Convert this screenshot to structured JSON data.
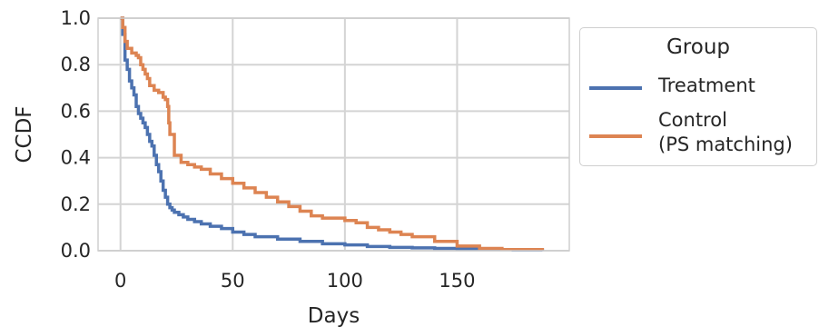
{
  "chart_data": {
    "type": "line",
    "step": true,
    "xlabel": "Days",
    "ylabel": "CCDF",
    "xlim": [
      -10,
      200
    ],
    "ylim": [
      0,
      1.0
    ],
    "xticks": [
      0,
      50,
      100,
      150
    ],
    "yticks": [
      0.0,
      0.2,
      0.4,
      0.6,
      0.8,
      1.0
    ],
    "xtick_labels": [
      "0",
      "50",
      "100",
      "150"
    ],
    "ytick_labels": [
      "0.0",
      "0.2",
      "0.4",
      "0.6",
      "0.8",
      "1.0"
    ],
    "grid": true,
    "legend": {
      "title": "Group",
      "position": "outside-right",
      "entries": [
        "Treatment",
        "Control\n(PS matching)"
      ]
    },
    "series": [
      {
        "name": "Treatment",
        "color": "#4c72b0",
        "x": [
          0,
          1,
          2,
          3,
          4,
          5,
          6,
          7,
          8,
          9,
          10,
          11,
          12,
          13,
          14,
          15,
          16,
          17,
          18,
          19,
          20,
          21,
          22,
          23,
          24,
          26,
          28,
          30,
          33,
          36,
          40,
          45,
          50,
          55,
          60,
          70,
          80,
          90,
          100,
          110,
          120,
          130,
          140,
          150,
          160,
          175,
          188
        ],
        "y": [
          1.0,
          0.93,
          0.82,
          0.78,
          0.73,
          0.7,
          0.67,
          0.62,
          0.59,
          0.57,
          0.55,
          0.53,
          0.5,
          0.47,
          0.45,
          0.41,
          0.37,
          0.34,
          0.3,
          0.26,
          0.23,
          0.2,
          0.185,
          0.175,
          0.165,
          0.155,
          0.145,
          0.135,
          0.125,
          0.115,
          0.105,
          0.095,
          0.08,
          0.07,
          0.06,
          0.05,
          0.04,
          0.03,
          0.025,
          0.018,
          0.014,
          0.012,
          0.01,
          0.008,
          0.005,
          0.003,
          0.002
        ]
      },
      {
        "name": "Control\n(PS matching)",
        "color": "#dd8452",
        "x": [
          0,
          1,
          2,
          3,
          5,
          7,
          8,
          9,
          10,
          11,
          12,
          13,
          15,
          17,
          19,
          20,
          21,
          21.5,
          22,
          24,
          27,
          30,
          33,
          36,
          40,
          45,
          50,
          55,
          60,
          65,
          70,
          75,
          80,
          85,
          90,
          100,
          105,
          110,
          115,
          120,
          125,
          130,
          140,
          150,
          160,
          170,
          188
        ],
        "y": [
          1.0,
          0.96,
          0.9,
          0.87,
          0.85,
          0.84,
          0.83,
          0.8,
          0.78,
          0.76,
          0.74,
          0.71,
          0.69,
          0.68,
          0.66,
          0.65,
          0.62,
          0.55,
          0.5,
          0.41,
          0.38,
          0.37,
          0.36,
          0.35,
          0.33,
          0.31,
          0.29,
          0.27,
          0.25,
          0.23,
          0.21,
          0.19,
          0.17,
          0.15,
          0.14,
          0.13,
          0.12,
          0.1,
          0.09,
          0.08,
          0.07,
          0.06,
          0.04,
          0.02,
          0.01,
          0.005,
          0.003
        ]
      }
    ]
  }
}
